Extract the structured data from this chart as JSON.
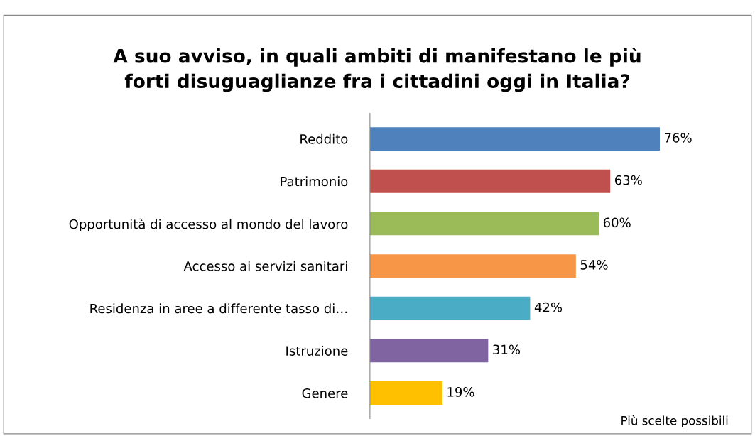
{
  "chart_data": {
    "type": "bar",
    "orientation": "horizontal",
    "title": "A suo avviso, in quali ambiti di manifestano le più\nforti disuguaglianze fra i cittadini oggi in Italia?",
    "categories": [
      "Reddito",
      "Patrimonio",
      "Opportunità di accesso al mondo del lavoro",
      "Accesso ai servizi sanitari",
      "Residenza in aree a differente tasso di…",
      "Istruzione",
      "Genere"
    ],
    "values": [
      76,
      63,
      60,
      54,
      42,
      31,
      19
    ],
    "value_labels": [
      "76%",
      "63%",
      "60%",
      "54%",
      "42%",
      "31%",
      "19%"
    ],
    "colors": [
      "#4f81bd",
      "#c0504d",
      "#9bbb59",
      "#f79646",
      "#4bacc6",
      "#8064a2",
      "#ffc000"
    ],
    "annotations": [
      "Più scelte possibili"
    ],
    "grid": false,
    "legend": false
  }
}
